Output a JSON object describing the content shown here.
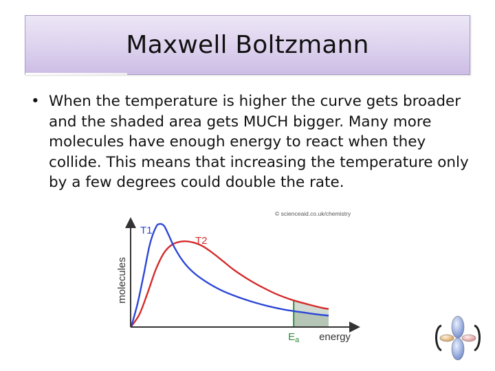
{
  "slide": {
    "title": "Maxwell Boltzmann",
    "bullet": "When the temperature is higher the curve gets broader and the shaded area gets MUCH bigger. Many more molecules have enough energy to react when they collide. This means that increasing the temperature only by a few degrees could double the rate."
  },
  "chart_data": {
    "type": "line",
    "title": "",
    "copyright": "© scienceaid.co.uk/chemistry",
    "xlabel": "energy",
    "ylabel": "molecules",
    "activation_label_main": "E",
    "activation_label_sub": "a",
    "activation_energy": 0.79,
    "xlim": [
      0,
      1
    ],
    "ylim": [
      0,
      1
    ],
    "grid": false,
    "legend": "none",
    "series": [
      {
        "name": "T1",
        "color": "#2b46d6",
        "x": [
          0,
          0.03,
          0.06,
          0.09,
          0.12,
          0.14,
          0.16,
          0.18,
          0.21,
          0.25,
          0.3,
          0.36,
          0.43,
          0.5,
          0.58,
          0.66,
          0.74,
          0.82,
          0.9,
          0.96
        ],
        "y": [
          0,
          0.22,
          0.5,
          0.8,
          0.97,
          1.0,
          0.98,
          0.9,
          0.77,
          0.64,
          0.53,
          0.44,
          0.36,
          0.3,
          0.245,
          0.2,
          0.165,
          0.14,
          0.118,
          0.105
        ]
      },
      {
        "name": "T2",
        "color": "#d42a2a",
        "x": [
          0,
          0.04,
          0.08,
          0.12,
          0.16,
          0.2,
          0.25,
          0.3,
          0.35,
          0.4,
          0.45,
          0.5,
          0.56,
          0.62,
          0.7,
          0.78,
          0.86,
          0.93,
          0.96
        ],
        "y": [
          0,
          0.12,
          0.33,
          0.56,
          0.72,
          0.8,
          0.83,
          0.82,
          0.78,
          0.71,
          0.63,
          0.55,
          0.47,
          0.4,
          0.32,
          0.26,
          0.215,
          0.18,
          0.17
        ]
      }
    ],
    "shade_color": "#b6c6b6",
    "shade_edge": "#2f8a3a"
  },
  "logo": {
    "icon": "orbital-logo-icon"
  }
}
